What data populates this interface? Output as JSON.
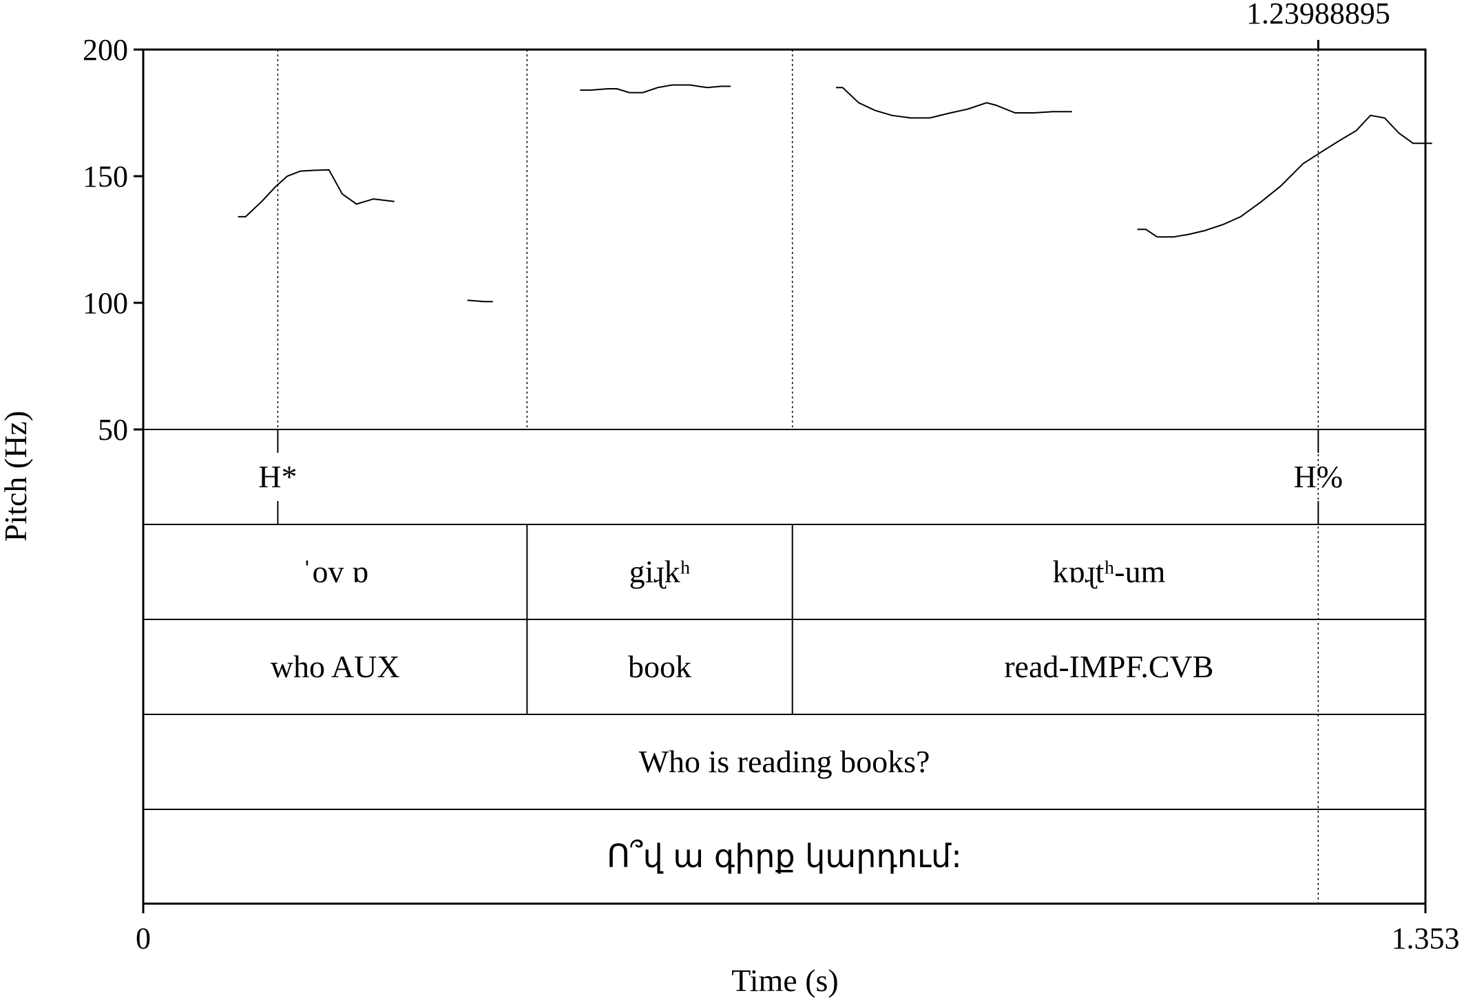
{
  "chart_data": {
    "type": "line",
    "xlabel": "Time (s)",
    "ylabel": "Pitch (Hz)",
    "xlim": [
      0,
      1.353
    ],
    "ylim": [
      50,
      200
    ],
    "x_tick_labels": [
      "0",
      "1.353"
    ],
    "y_tick_labels": [
      "200",
      "150",
      "100",
      "50"
    ],
    "y_ticks": [
      200,
      150,
      100,
      50
    ],
    "cursor": {
      "time": 1.23988895,
      "label": "1.23988895"
    },
    "boundaries": [
      0.142,
      0.405,
      0.685
    ],
    "series": [
      {
        "segments": [
          [
            [
              0.1,
              134
            ],
            [
              0.108,
              134
            ],
            [
              0.125,
              140
            ],
            [
              0.14,
              146
            ],
            [
              0.152,
              150
            ],
            [
              0.166,
              152
            ],
            [
              0.18,
              152.3
            ],
            [
              0.196,
              152.5
            ],
            [
              0.21,
              143
            ],
            [
              0.225,
              139
            ],
            [
              0.243,
              141
            ],
            [
              0.265,
              140
            ]
          ],
          [
            [
              0.342,
              101
            ],
            [
              0.36,
              100.5
            ],
            [
              0.369,
              100.5
            ]
          ],
          [
            [
              0.461,
              184
            ],
            [
              0.473,
              184
            ],
            [
              0.49,
              184.5
            ],
            [
              0.5,
              184.5
            ],
            [
              0.513,
              183
            ],
            [
              0.527,
              183
            ],
            [
              0.543,
              185
            ],
            [
              0.558,
              186
            ],
            [
              0.577,
              186
            ],
            [
              0.595,
              185
            ],
            [
              0.61,
              185.5
            ],
            [
              0.62,
              185.5
            ]
          ],
          [
            [
              0.731,
              185
            ],
            [
              0.738,
              185
            ],
            [
              0.755,
              179
            ],
            [
              0.772,
              176
            ],
            [
              0.79,
              174
            ],
            [
              0.81,
              173
            ],
            [
              0.83,
              173
            ],
            [
              0.852,
              175
            ],
            [
              0.87,
              176.5
            ],
            [
              0.89,
              179
            ],
            [
              0.9,
              178
            ],
            [
              0.92,
              175
            ],
            [
              0.94,
              175
            ],
            [
              0.96,
              175.5
            ],
            [
              0.98,
              175.5
            ]
          ],
          [
            [
              1.049,
              129
            ],
            [
              1.058,
              129
            ],
            [
              1.07,
              126
            ],
            [
              1.087,
              126
            ],
            [
              1.103,
              127
            ],
            [
              1.12,
              128.5
            ],
            [
              1.14,
              131
            ],
            [
              1.158,
              134
            ],
            [
              1.18,
              140
            ],
            [
              1.2,
              146
            ],
            [
              1.224,
              155
            ],
            [
              1.245,
              160
            ],
            [
              1.262,
              164
            ],
            [
              1.28,
              168
            ],
            [
              1.295,
              174
            ],
            [
              1.31,
              173
            ],
            [
              1.325,
              167
            ],
            [
              1.34,
              163
            ],
            [
              1.36,
              163
            ]
          ]
        ]
      }
    ]
  },
  "tiers": {
    "tones": [
      {
        "time": 0.142,
        "label": "H*"
      },
      {
        "time": 1.23988895,
        "label": "H%"
      }
    ],
    "ipa": [
      {
        "start": 0,
        "end": 0.405,
        "label": "ˈov ɒ"
      },
      {
        "start": 0.405,
        "end": 0.685,
        "label": "giɻkʰ"
      },
      {
        "start": 0.685,
        "end": 1.353,
        "label": "kɒɻtʰ-um"
      }
    ],
    "gloss": [
      {
        "start": 0,
        "end": 0.405,
        "label": "who AUX"
      },
      {
        "start": 0.405,
        "end": 0.685,
        "label": "book"
      },
      {
        "start": 0.685,
        "end": 1.353,
        "label": "read-IMPF.CVB"
      }
    ],
    "translation": "Who is reading books?",
    "armenian": "Ո՞վ ա գիրք կարդում:"
  }
}
